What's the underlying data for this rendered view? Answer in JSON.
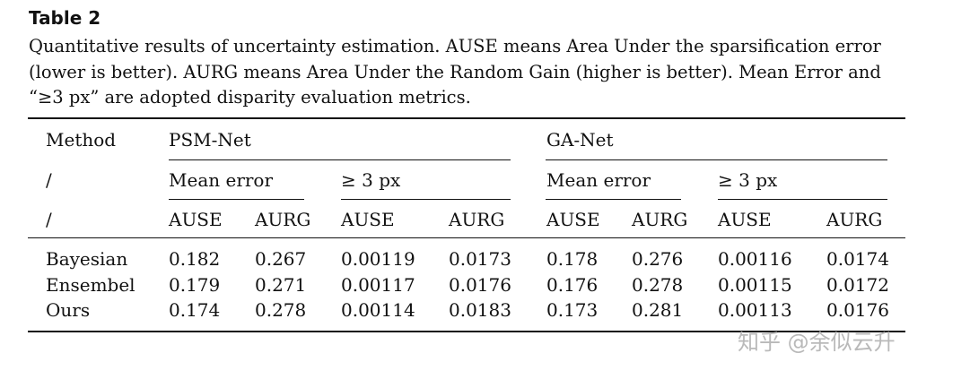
{
  "table": {
    "title": "Table 2",
    "caption_line1": "Quantitative results of uncertainty estimation. AUSE means Area Under the sparsification error",
    "caption_line2": "(lower is better). AURG means Area Under the Random Gain (higher is better). Mean Error and",
    "caption_line3": "“≥3 px” are adopted disparity evaluation metrics.",
    "header": {
      "method": "Method",
      "slash": "/",
      "group1": "PSM-Net",
      "group2": "GA-Net",
      "metric_mean": "Mean error",
      "metric_3px": "≥ 3 px",
      "ause": "AUSE",
      "aurg": "AURG"
    },
    "rows": [
      {
        "method": "Bayesian",
        "values": [
          "0.182",
          "0.267",
          "0.00119",
          "0.0173",
          "0.178",
          "0.276",
          "0.00116",
          "0.0174"
        ]
      },
      {
        "method": "Ensembel",
        "values": [
          "0.179",
          "0.271",
          "0.00117",
          "0.0176",
          "0.176",
          "0.278",
          "0.00115",
          "0.0172"
        ]
      },
      {
        "method": "Ours",
        "values": [
          "0.174",
          "0.278",
          "0.00114",
          "0.0183",
          "0.173",
          "0.281",
          "0.00113",
          "0.0176"
        ]
      }
    ]
  },
  "watermark": "知乎 @余似云升"
}
